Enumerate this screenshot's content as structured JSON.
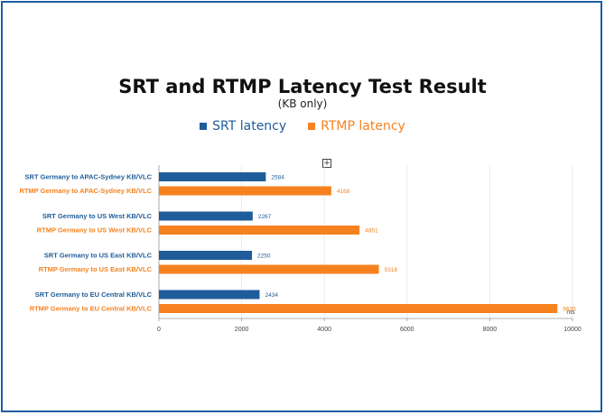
{
  "chart_data": {
    "type": "bar",
    "orientation": "horizontal",
    "title": "SRT and RTMP Latency Test Result",
    "subtitle": "(KB only)",
    "xlabel": "ms",
    "xlim": [
      0,
      10000
    ],
    "xticks": [
      0,
      2000,
      4000,
      6000,
      8000,
      10000
    ],
    "grid": true,
    "legend_position": "top",
    "groups": [
      {
        "bars": [
          {
            "series": "SRT latency",
            "label": "SRT Germany to APAC-Sydney KB/VLC",
            "value": 2584
          },
          {
            "series": "RTMP latency",
            "label": "RTMP  Germany to APAC-Sydney KB/VLC",
            "value": 4168
          }
        ]
      },
      {
        "bars": [
          {
            "series": "SRT latency",
            "label": "SRT Germany to US West KB/VLC",
            "value": 2267
          },
          {
            "series": "RTMP latency",
            "label": "RTMP  Germany to US West KB/VLC",
            "value": 4851
          }
        ]
      },
      {
        "bars": [
          {
            "series": "SRT latency",
            "label": "SRT Germany to US East KB/VLC",
            "value": 2250
          },
          {
            "series": "RTMP latency",
            "label": "RTMP  Germany to US East KB/VLC",
            "value": 5318
          }
        ]
      },
      {
        "bars": [
          {
            "series": "SRT latency",
            "label": "SRT Germany to EU Central KB/VLC",
            "value": 2434
          },
          {
            "series": "RTMP latency",
            "label": "RTMP  Germany to EU Central KB/VLC",
            "value": 9635
          }
        ]
      }
    ],
    "series": [
      {
        "name": "SRT latency",
        "color": "#1f5c9a"
      },
      {
        "name": "RTMP latency",
        "color": "#f5821f"
      }
    ]
  },
  "icons": {
    "expand": "plus-box-icon",
    "expand_glyph": "+"
  }
}
